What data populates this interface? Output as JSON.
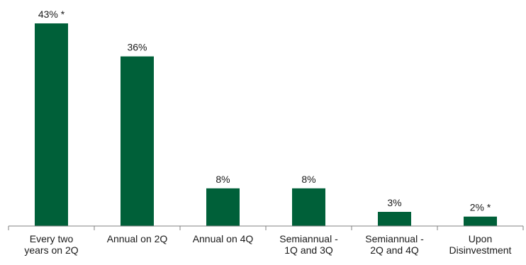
{
  "chart_data": {
    "type": "bar",
    "categories": [
      [
        "Every two",
        "years on 2Q"
      ],
      [
        "Annual on 2Q"
      ],
      [
        "Annual on 4Q"
      ],
      [
        "Semiannual -",
        "1Q and 3Q"
      ],
      [
        "Semiannual -",
        "2Q and 4Q"
      ],
      [
        "Upon",
        "Disinvestment"
      ]
    ],
    "values": [
      43,
      36,
      8,
      8,
      3,
      2
    ],
    "data_labels": [
      "43% *",
      "36%",
      "8%",
      "8%",
      "3%",
      "2% *"
    ],
    "title": "",
    "xlabel": "",
    "ylabel": "",
    "ylim": [
      0,
      43
    ],
    "grid": false,
    "legend": "none",
    "bar_color": "#006039",
    "axis_color": "#808080"
  }
}
